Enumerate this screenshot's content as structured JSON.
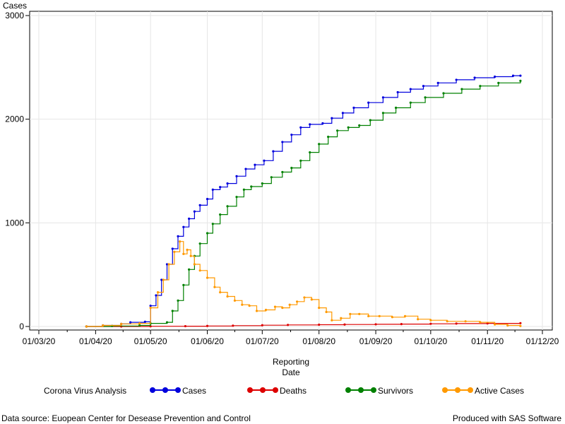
{
  "chart_data": {
    "type": "line",
    "ylabel": "Cases",
    "xlabel_line1": "Reporting",
    "xlabel_line2": "Date",
    "ylim": [
      0,
      3000
    ],
    "yticks": [
      0,
      1000,
      2000,
      3000
    ],
    "xlim": [
      "2020-03-01",
      "2020-12-01"
    ],
    "xticks": [
      {
        "date": "2020-03-01",
        "label": "01/03/20"
      },
      {
        "date": "2020-04-01",
        "label": "01/04/20"
      },
      {
        "date": "2020-05-01",
        "label": "01/05/20"
      },
      {
        "date": "2020-06-01",
        "label": "01/06/20"
      },
      {
        "date": "2020-07-01",
        "label": "01/07/20"
      },
      {
        "date": "2020-08-01",
        "label": "01/08/20"
      },
      {
        "date": "2020-09-01",
        "label": "01/09/20"
      },
      {
        "date": "2020-10-01",
        "label": "01/10/20"
      },
      {
        "date": "2020-11-01",
        "label": "01/11/20"
      },
      {
        "date": "2020-12-01",
        "label": "01/12/20"
      }
    ],
    "grid": true,
    "legend_title": "Corona Virus Analysis",
    "legend_position": "bottom",
    "footnote_left": "Data source: Euopean Center for Desease Prevention and Control",
    "footnote_right": "Produced with SAS Software",
    "series": [
      {
        "name": "Cases",
        "color": "#0000dd",
        "points": [
          [
            "2020-03-27",
            0
          ],
          [
            "2020-04-05",
            10
          ],
          [
            "2020-04-15",
            25
          ],
          [
            "2020-04-20",
            40
          ],
          [
            "2020-04-28",
            45
          ],
          [
            "2020-05-01",
            200
          ],
          [
            "2020-05-04",
            300
          ],
          [
            "2020-05-07",
            450
          ],
          [
            "2020-05-10",
            600
          ],
          [
            "2020-05-13",
            750
          ],
          [
            "2020-05-16",
            870
          ],
          [
            "2020-05-19",
            960
          ],
          [
            "2020-05-22",
            1040
          ],
          [
            "2020-05-25",
            1110
          ],
          [
            "2020-05-28",
            1170
          ],
          [
            "2020-06-01",
            1230
          ],
          [
            "2020-06-04",
            1320
          ],
          [
            "2020-06-08",
            1345
          ],
          [
            "2020-06-12",
            1380
          ],
          [
            "2020-06-17",
            1450
          ],
          [
            "2020-06-22",
            1520
          ],
          [
            "2020-06-27",
            1560
          ],
          [
            "2020-07-02",
            1600
          ],
          [
            "2020-07-07",
            1690
          ],
          [
            "2020-07-12",
            1780
          ],
          [
            "2020-07-17",
            1850
          ],
          [
            "2020-07-22",
            1920
          ],
          [
            "2020-07-27",
            1950
          ],
          [
            "2020-08-03",
            1960
          ],
          [
            "2020-08-08",
            2010
          ],
          [
            "2020-08-14",
            2060
          ],
          [
            "2020-08-20",
            2110
          ],
          [
            "2020-08-28",
            2160
          ],
          [
            "2020-09-05",
            2210
          ],
          [
            "2020-09-13",
            2260
          ],
          [
            "2020-09-20",
            2290
          ],
          [
            "2020-09-27",
            2320
          ],
          [
            "2020-10-05",
            2350
          ],
          [
            "2020-10-15",
            2380
          ],
          [
            "2020-10-25",
            2400
          ],
          [
            "2020-11-05",
            2410
          ],
          [
            "2020-11-15",
            2420
          ],
          [
            "2020-11-19",
            2420
          ]
        ]
      },
      {
        "name": "Deaths",
        "color": "#dd0000",
        "points": [
          [
            "2020-03-27",
            0
          ],
          [
            "2020-04-15",
            0
          ],
          [
            "2020-05-01",
            2
          ],
          [
            "2020-05-20",
            3
          ],
          [
            "2020-06-01",
            5
          ],
          [
            "2020-06-15",
            8
          ],
          [
            "2020-07-01",
            12
          ],
          [
            "2020-07-15",
            15
          ],
          [
            "2020-08-01",
            17
          ],
          [
            "2020-08-15",
            19
          ],
          [
            "2020-09-01",
            21
          ],
          [
            "2020-09-15",
            23
          ],
          [
            "2020-10-01",
            26
          ],
          [
            "2020-10-15",
            28
          ],
          [
            "2020-11-01",
            30
          ],
          [
            "2020-11-19",
            32
          ]
        ]
      },
      {
        "name": "Survivors",
        "color": "#008000",
        "points": [
          [
            "2020-03-27",
            0
          ],
          [
            "2020-04-10",
            5
          ],
          [
            "2020-04-25",
            10
          ],
          [
            "2020-05-01",
            30
          ],
          [
            "2020-05-10",
            40
          ],
          [
            "2020-05-13",
            150
          ],
          [
            "2020-05-16",
            250
          ],
          [
            "2020-05-19",
            400
          ],
          [
            "2020-05-22",
            550
          ],
          [
            "2020-05-25",
            680
          ],
          [
            "2020-05-28",
            800
          ],
          [
            "2020-06-01",
            900
          ],
          [
            "2020-06-04",
            990
          ],
          [
            "2020-06-08",
            1080
          ],
          [
            "2020-06-12",
            1160
          ],
          [
            "2020-06-17",
            1250
          ],
          [
            "2020-06-21",
            1320
          ],
          [
            "2020-06-25",
            1350
          ],
          [
            "2020-07-01",
            1380
          ],
          [
            "2020-07-06",
            1440
          ],
          [
            "2020-07-12",
            1490
          ],
          [
            "2020-07-17",
            1530
          ],
          [
            "2020-07-22",
            1600
          ],
          [
            "2020-07-27",
            1680
          ],
          [
            "2020-08-01",
            1760
          ],
          [
            "2020-08-06",
            1830
          ],
          [
            "2020-08-11",
            1890
          ],
          [
            "2020-08-17",
            1920
          ],
          [
            "2020-08-23",
            1940
          ],
          [
            "2020-08-29",
            1990
          ],
          [
            "2020-09-05",
            2060
          ],
          [
            "2020-09-12",
            2110
          ],
          [
            "2020-09-20",
            2160
          ],
          [
            "2020-09-28",
            2210
          ],
          [
            "2020-10-08",
            2250
          ],
          [
            "2020-10-18",
            2290
          ],
          [
            "2020-10-28",
            2320
          ],
          [
            "2020-11-07",
            2350
          ],
          [
            "2020-11-19",
            2370
          ]
        ]
      },
      {
        "name": "Active Cases",
        "color": "#ff9900",
        "points": [
          [
            "2020-03-27",
            0
          ],
          [
            "2020-04-05",
            10
          ],
          [
            "2020-04-15",
            25
          ],
          [
            "2020-04-25",
            30
          ],
          [
            "2020-05-01",
            180
          ],
          [
            "2020-05-05",
            330
          ],
          [
            "2020-05-08",
            450
          ],
          [
            "2020-05-11",
            600
          ],
          [
            "2020-05-14",
            720
          ],
          [
            "2020-05-17",
            820
          ],
          [
            "2020-05-19",
            700
          ],
          [
            "2020-05-21",
            740
          ],
          [
            "2020-05-23",
            680
          ],
          [
            "2020-05-25",
            600
          ],
          [
            "2020-05-28",
            540
          ],
          [
            "2020-06-01",
            470
          ],
          [
            "2020-06-05",
            380
          ],
          [
            "2020-06-08",
            330
          ],
          [
            "2020-06-12",
            290
          ],
          [
            "2020-06-16",
            250
          ],
          [
            "2020-06-20",
            210
          ],
          [
            "2020-06-24",
            200
          ],
          [
            "2020-06-28",
            150
          ],
          [
            "2020-07-03",
            160
          ],
          [
            "2020-07-08",
            190
          ],
          [
            "2020-07-12",
            180
          ],
          [
            "2020-07-16",
            210
          ],
          [
            "2020-07-20",
            240
          ],
          [
            "2020-07-24",
            280
          ],
          [
            "2020-07-28",
            260
          ],
          [
            "2020-08-01",
            180
          ],
          [
            "2020-08-05",
            140
          ],
          [
            "2020-08-08",
            60
          ],
          [
            "2020-08-13",
            80
          ],
          [
            "2020-08-18",
            120
          ],
          [
            "2020-08-23",
            120
          ],
          [
            "2020-08-28",
            100
          ],
          [
            "2020-09-03",
            100
          ],
          [
            "2020-09-10",
            90
          ],
          [
            "2020-09-17",
            100
          ],
          [
            "2020-09-24",
            70
          ],
          [
            "2020-10-01",
            60
          ],
          [
            "2020-10-10",
            50
          ],
          [
            "2020-10-20",
            50
          ],
          [
            "2020-10-28",
            40
          ],
          [
            "2020-11-05",
            20
          ],
          [
            "2020-11-12",
            10
          ],
          [
            "2020-11-19",
            5
          ]
        ]
      }
    ]
  }
}
